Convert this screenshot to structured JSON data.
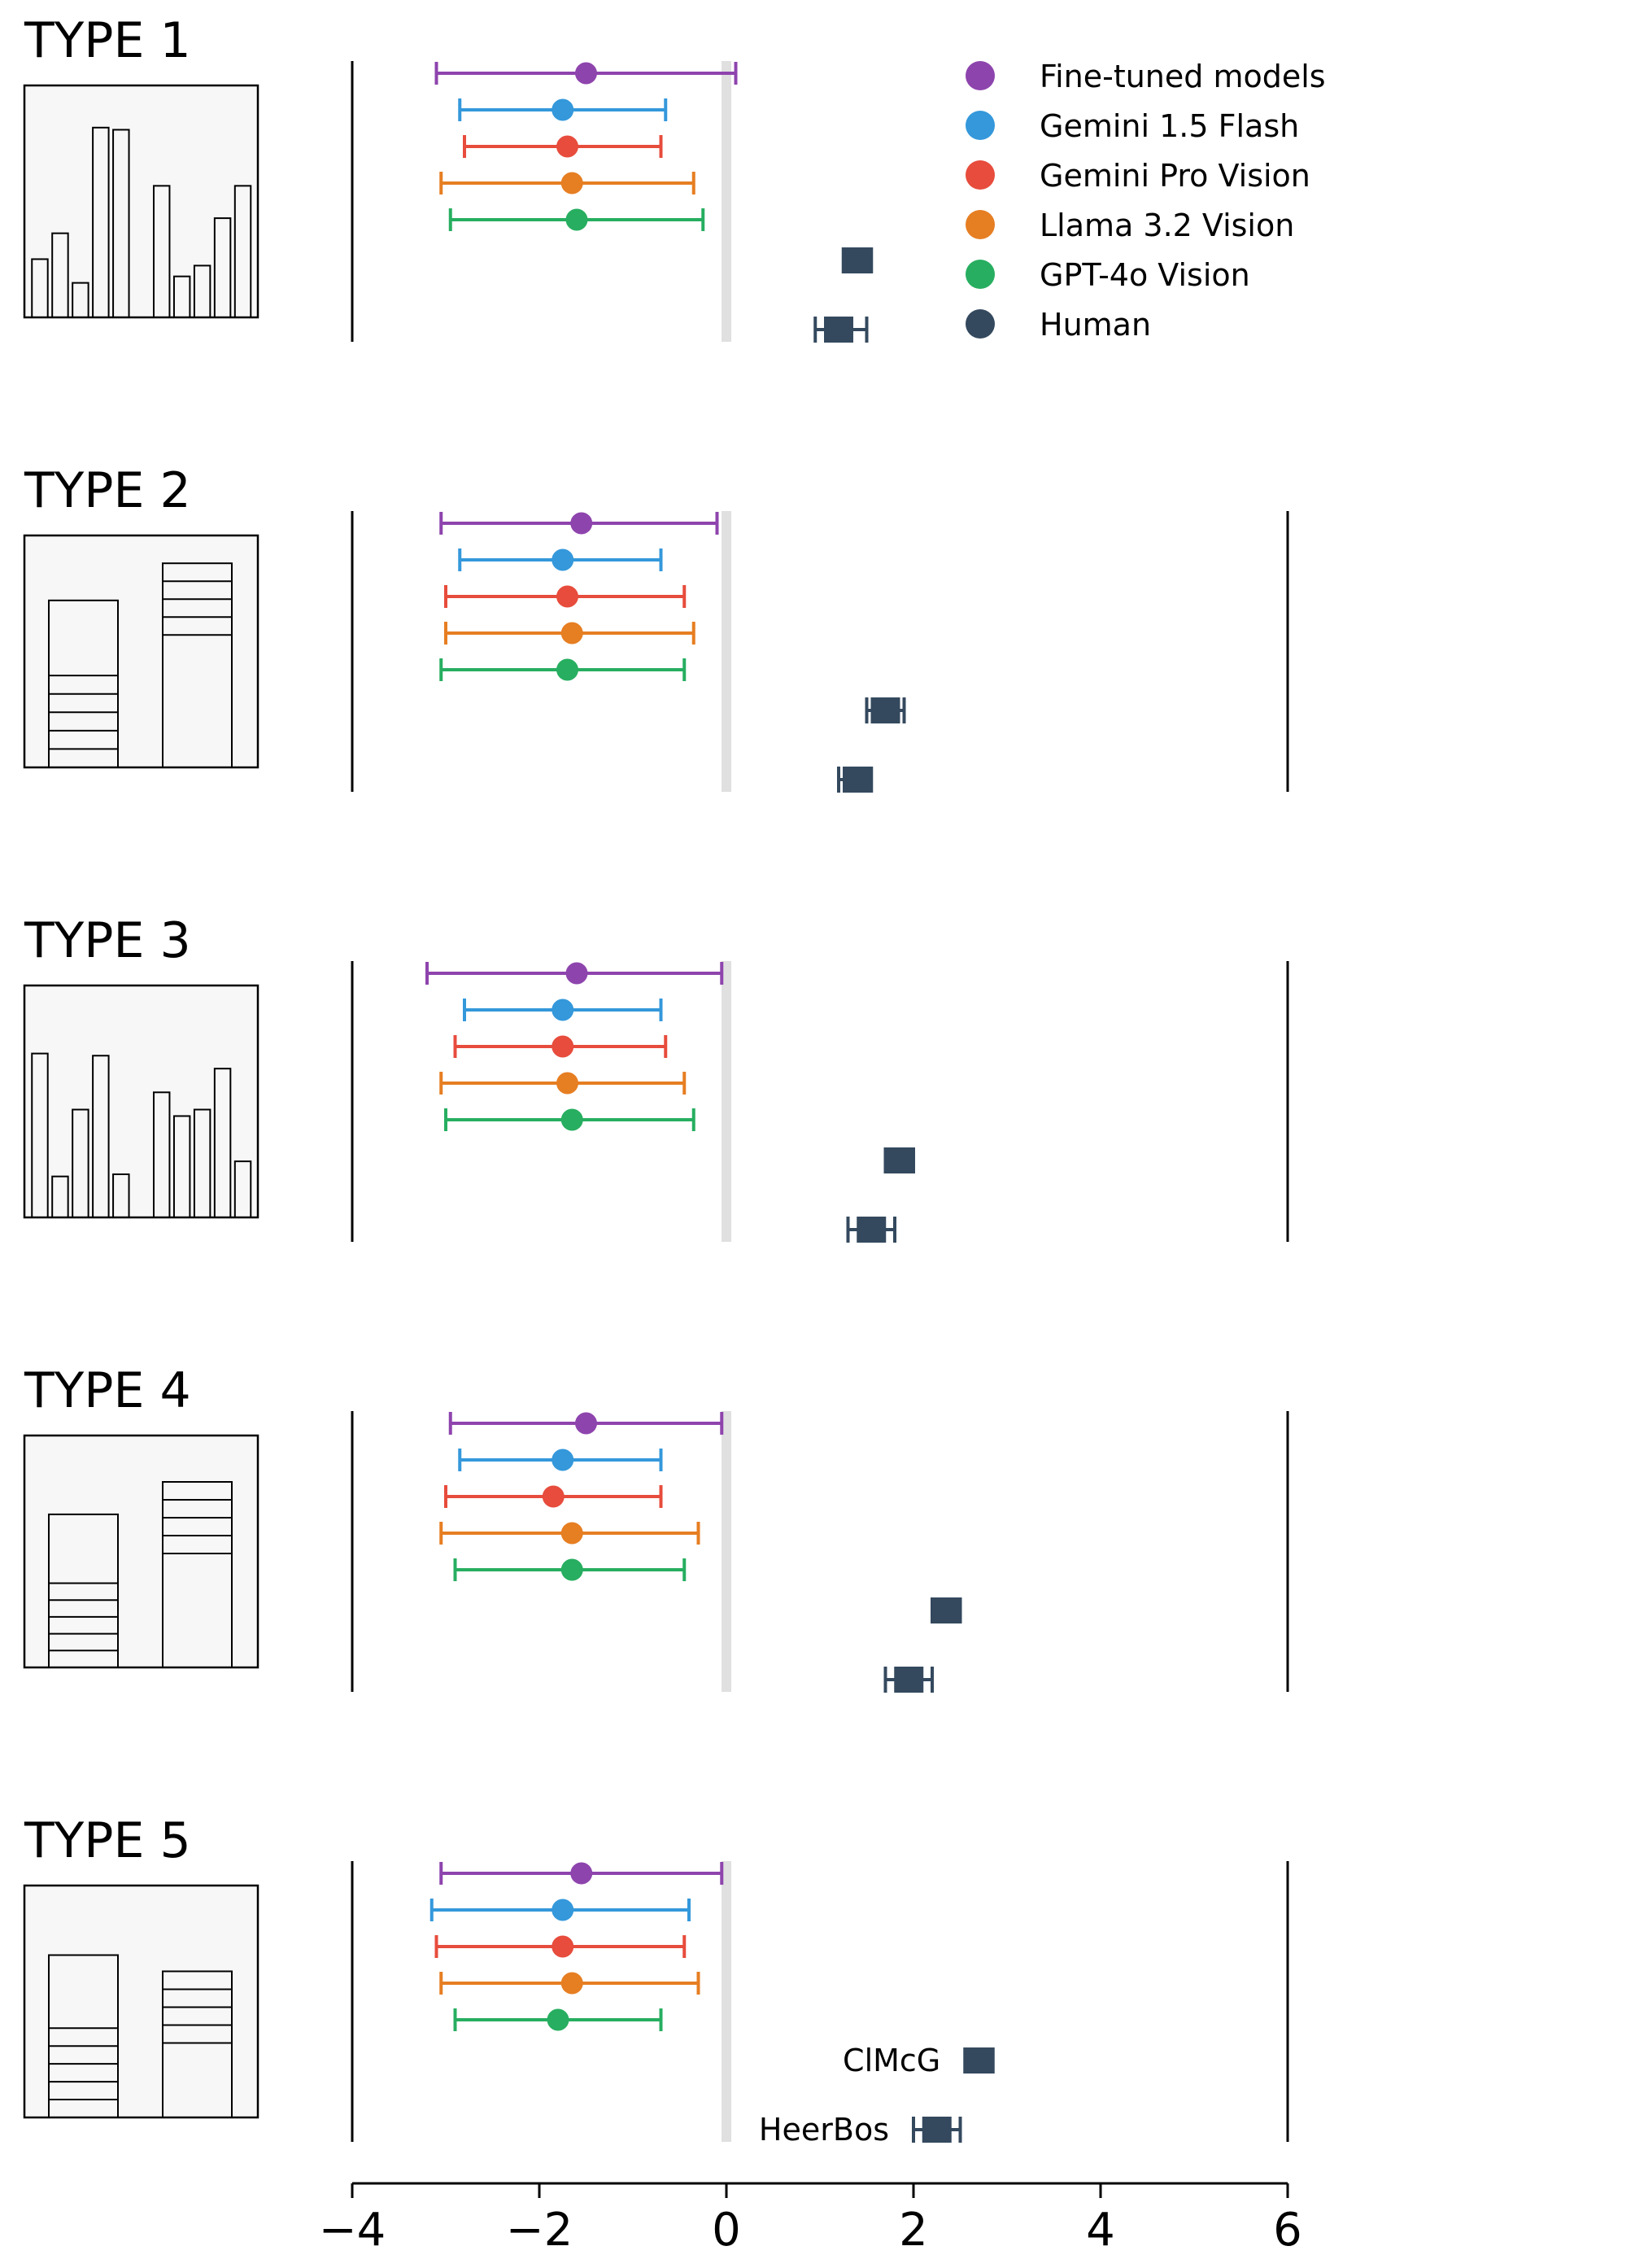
{
  "chart_data": {
    "type": "errorbar",
    "title": "",
    "xlabel": "",
    "xlim": [
      -4,
      6
    ],
    "x_ticks": [
      -4,
      -2,
      0,
      2,
      4,
      6
    ],
    "x_tick_labels": [
      "−4",
      "−2",
      "0",
      "2",
      "4",
      "6"
    ],
    "reference_line_x": 0,
    "legend": {
      "placement": "top-right",
      "entries": [
        {
          "label": "Fine-tuned models",
          "color": "#8e44ad"
        },
        {
          "label": "Gemini 1.5 Flash",
          "color": "#3498db"
        },
        {
          "label": "Gemini Pro Vision",
          "color": "#e74c3c"
        },
        {
          "label": "Llama 3.2 Vision",
          "color": "#e67e22"
        },
        {
          "label": "GPT-4o Vision",
          "color": "#27ae60"
        },
        {
          "label": "Human",
          "color": "#34495e"
        }
      ]
    },
    "human_labels": [
      "ClMcG",
      "HeerBos"
    ],
    "series_colors": [
      "#8e44ad",
      "#3498db",
      "#e74c3c",
      "#e67e22",
      "#27ae60"
    ],
    "human_color": "#34495e",
    "panels": [
      {
        "title": "TYPE 1",
        "thumbnail": "bars",
        "models": [
          {
            "mean": -1.5,
            "low": -3.1,
            "high": 0.1
          },
          {
            "mean": -1.75,
            "low": -2.85,
            "high": -0.65
          },
          {
            "mean": -1.7,
            "low": -2.8,
            "high": -0.7
          },
          {
            "mean": -1.65,
            "low": -3.05,
            "high": -0.35
          },
          {
            "mean": -1.6,
            "low": -2.95,
            "high": -0.25
          }
        ],
        "humans": [
          {
            "mean": 1.4,
            "low": 1.25,
            "high": 1.55
          },
          {
            "mean": 1.2,
            "low": 0.95,
            "high": 1.5
          }
        ]
      },
      {
        "title": "TYPE 2",
        "thumbnail": "stacked",
        "models": [
          {
            "mean": -1.55,
            "low": -3.05,
            "high": -0.1
          },
          {
            "mean": -1.75,
            "low": -2.85,
            "high": -0.7
          },
          {
            "mean": -1.7,
            "low": -3.0,
            "high": -0.45
          },
          {
            "mean": -1.65,
            "low": -3.0,
            "high": -0.35
          },
          {
            "mean": -1.7,
            "low": -3.05,
            "high": -0.45
          }
        ],
        "humans": [
          {
            "mean": 1.7,
            "low": 1.5,
            "high": 1.9
          },
          {
            "mean": 1.4,
            "low": 1.2,
            "high": 1.55
          }
        ]
      },
      {
        "title": "TYPE 3",
        "thumbnail": "bars",
        "models": [
          {
            "mean": -1.6,
            "low": -3.2,
            "high": -0.05
          },
          {
            "mean": -1.75,
            "low": -2.8,
            "high": -0.7
          },
          {
            "mean": -1.75,
            "low": -2.9,
            "high": -0.65
          },
          {
            "mean": -1.7,
            "low": -3.05,
            "high": -0.45
          },
          {
            "mean": -1.65,
            "low": -3.0,
            "high": -0.35
          }
        ],
        "humans": [
          {
            "mean": 1.85,
            "low": 1.7,
            "high": 2.0
          },
          {
            "mean": 1.55,
            "low": 1.3,
            "high": 1.8
          }
        ]
      },
      {
        "title": "TYPE 4",
        "thumbnail": "stacked",
        "models": [
          {
            "mean": -1.5,
            "low": -2.95,
            "high": -0.05
          },
          {
            "mean": -1.75,
            "low": -2.85,
            "high": -0.7
          },
          {
            "mean": -1.85,
            "low": -3.0,
            "high": -0.7
          },
          {
            "mean": -1.65,
            "low": -3.05,
            "high": -0.3
          },
          {
            "mean": -1.65,
            "low": -2.9,
            "high": -0.45
          }
        ],
        "humans": [
          {
            "mean": 2.35,
            "low": 2.2,
            "high": 2.5
          },
          {
            "mean": 1.95,
            "low": 1.7,
            "high": 2.2
          }
        ]
      },
      {
        "title": "TYPE 5",
        "thumbnail": "stacked",
        "models": [
          {
            "mean": -1.55,
            "low": -3.05,
            "high": -0.05
          },
          {
            "mean": -1.75,
            "low": -3.15,
            "high": -0.4
          },
          {
            "mean": -1.75,
            "low": -3.1,
            "high": -0.45
          },
          {
            "mean": -1.65,
            "low": -3.05,
            "high": -0.3
          },
          {
            "mean": -1.8,
            "low": -2.9,
            "high": -0.7
          }
        ],
        "humans": [
          {
            "mean": 2.7,
            "low": 2.55,
            "high": 2.85
          },
          {
            "mean": 2.25,
            "low": 2.0,
            "high": 2.5
          }
        ]
      }
    ]
  }
}
